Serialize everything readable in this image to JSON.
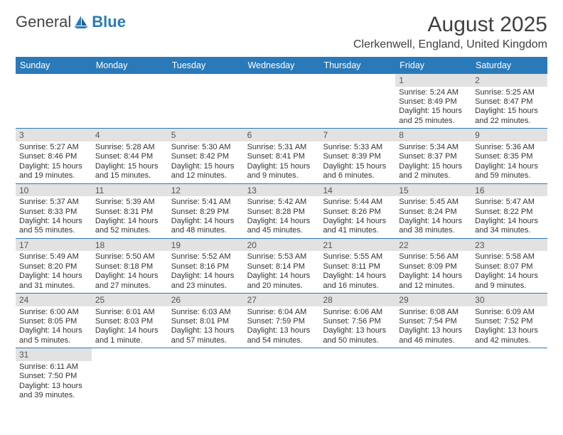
{
  "logo": {
    "part1": "General",
    "part2": "Blue"
  },
  "title": "August 2025",
  "location": "Clerkenwell, England, United Kingdom",
  "colors": {
    "header_bg": "#2a7ab9",
    "dnum_bg": "#e2e2e2",
    "text": "#333333"
  },
  "dow": [
    "Sunday",
    "Monday",
    "Tuesday",
    "Wednesday",
    "Thursday",
    "Friday",
    "Saturday"
  ],
  "weeks": [
    [
      {
        "n": "",
        "empty": true
      },
      {
        "n": "",
        "empty": true
      },
      {
        "n": "",
        "empty": true
      },
      {
        "n": "",
        "empty": true
      },
      {
        "n": "",
        "empty": true
      },
      {
        "n": "1",
        "sr": "Sunrise: 5:24 AM",
        "ss": "Sunset: 8:49 PM",
        "d1": "Daylight: 15 hours",
        "d2": "and 25 minutes."
      },
      {
        "n": "2",
        "sr": "Sunrise: 5:25 AM",
        "ss": "Sunset: 8:47 PM",
        "d1": "Daylight: 15 hours",
        "d2": "and 22 minutes."
      }
    ],
    [
      {
        "n": "3",
        "sr": "Sunrise: 5:27 AM",
        "ss": "Sunset: 8:46 PM",
        "d1": "Daylight: 15 hours",
        "d2": "and 19 minutes."
      },
      {
        "n": "4",
        "sr": "Sunrise: 5:28 AM",
        "ss": "Sunset: 8:44 PM",
        "d1": "Daylight: 15 hours",
        "d2": "and 15 minutes."
      },
      {
        "n": "5",
        "sr": "Sunrise: 5:30 AM",
        "ss": "Sunset: 8:42 PM",
        "d1": "Daylight: 15 hours",
        "d2": "and 12 minutes."
      },
      {
        "n": "6",
        "sr": "Sunrise: 5:31 AM",
        "ss": "Sunset: 8:41 PM",
        "d1": "Daylight: 15 hours",
        "d2": "and 9 minutes."
      },
      {
        "n": "7",
        "sr": "Sunrise: 5:33 AM",
        "ss": "Sunset: 8:39 PM",
        "d1": "Daylight: 15 hours",
        "d2": "and 6 minutes."
      },
      {
        "n": "8",
        "sr": "Sunrise: 5:34 AM",
        "ss": "Sunset: 8:37 PM",
        "d1": "Daylight: 15 hours",
        "d2": "and 2 minutes."
      },
      {
        "n": "9",
        "sr": "Sunrise: 5:36 AM",
        "ss": "Sunset: 8:35 PM",
        "d1": "Daylight: 14 hours",
        "d2": "and 59 minutes."
      }
    ],
    [
      {
        "n": "10",
        "sr": "Sunrise: 5:37 AM",
        "ss": "Sunset: 8:33 PM",
        "d1": "Daylight: 14 hours",
        "d2": "and 55 minutes."
      },
      {
        "n": "11",
        "sr": "Sunrise: 5:39 AM",
        "ss": "Sunset: 8:31 PM",
        "d1": "Daylight: 14 hours",
        "d2": "and 52 minutes."
      },
      {
        "n": "12",
        "sr": "Sunrise: 5:41 AM",
        "ss": "Sunset: 8:29 PM",
        "d1": "Daylight: 14 hours",
        "d2": "and 48 minutes."
      },
      {
        "n": "13",
        "sr": "Sunrise: 5:42 AM",
        "ss": "Sunset: 8:28 PM",
        "d1": "Daylight: 14 hours",
        "d2": "and 45 minutes."
      },
      {
        "n": "14",
        "sr": "Sunrise: 5:44 AM",
        "ss": "Sunset: 8:26 PM",
        "d1": "Daylight: 14 hours",
        "d2": "and 41 minutes."
      },
      {
        "n": "15",
        "sr": "Sunrise: 5:45 AM",
        "ss": "Sunset: 8:24 PM",
        "d1": "Daylight: 14 hours",
        "d2": "and 38 minutes."
      },
      {
        "n": "16",
        "sr": "Sunrise: 5:47 AM",
        "ss": "Sunset: 8:22 PM",
        "d1": "Daylight: 14 hours",
        "d2": "and 34 minutes."
      }
    ],
    [
      {
        "n": "17",
        "sr": "Sunrise: 5:49 AM",
        "ss": "Sunset: 8:20 PM",
        "d1": "Daylight: 14 hours",
        "d2": "and 31 minutes."
      },
      {
        "n": "18",
        "sr": "Sunrise: 5:50 AM",
        "ss": "Sunset: 8:18 PM",
        "d1": "Daylight: 14 hours",
        "d2": "and 27 minutes."
      },
      {
        "n": "19",
        "sr": "Sunrise: 5:52 AM",
        "ss": "Sunset: 8:16 PM",
        "d1": "Daylight: 14 hours",
        "d2": "and 23 minutes."
      },
      {
        "n": "20",
        "sr": "Sunrise: 5:53 AM",
        "ss": "Sunset: 8:14 PM",
        "d1": "Daylight: 14 hours",
        "d2": "and 20 minutes."
      },
      {
        "n": "21",
        "sr": "Sunrise: 5:55 AM",
        "ss": "Sunset: 8:11 PM",
        "d1": "Daylight: 14 hours",
        "d2": "and 16 minutes."
      },
      {
        "n": "22",
        "sr": "Sunrise: 5:56 AM",
        "ss": "Sunset: 8:09 PM",
        "d1": "Daylight: 14 hours",
        "d2": "and 12 minutes."
      },
      {
        "n": "23",
        "sr": "Sunrise: 5:58 AM",
        "ss": "Sunset: 8:07 PM",
        "d1": "Daylight: 14 hours",
        "d2": "and 9 minutes."
      }
    ],
    [
      {
        "n": "24",
        "sr": "Sunrise: 6:00 AM",
        "ss": "Sunset: 8:05 PM",
        "d1": "Daylight: 14 hours",
        "d2": "and 5 minutes."
      },
      {
        "n": "25",
        "sr": "Sunrise: 6:01 AM",
        "ss": "Sunset: 8:03 PM",
        "d1": "Daylight: 14 hours",
        "d2": "and 1 minute."
      },
      {
        "n": "26",
        "sr": "Sunrise: 6:03 AM",
        "ss": "Sunset: 8:01 PM",
        "d1": "Daylight: 13 hours",
        "d2": "and 57 minutes."
      },
      {
        "n": "27",
        "sr": "Sunrise: 6:04 AM",
        "ss": "Sunset: 7:59 PM",
        "d1": "Daylight: 13 hours",
        "d2": "and 54 minutes."
      },
      {
        "n": "28",
        "sr": "Sunrise: 6:06 AM",
        "ss": "Sunset: 7:56 PM",
        "d1": "Daylight: 13 hours",
        "d2": "and 50 minutes."
      },
      {
        "n": "29",
        "sr": "Sunrise: 6:08 AM",
        "ss": "Sunset: 7:54 PM",
        "d1": "Daylight: 13 hours",
        "d2": "and 46 minutes."
      },
      {
        "n": "30",
        "sr": "Sunrise: 6:09 AM",
        "ss": "Sunset: 7:52 PM",
        "d1": "Daylight: 13 hours",
        "d2": "and 42 minutes."
      }
    ],
    [
      {
        "n": "31",
        "sr": "Sunrise: 6:11 AM",
        "ss": "Sunset: 7:50 PM",
        "d1": "Daylight: 13 hours",
        "d2": "and 39 minutes."
      },
      {
        "n": "",
        "empty": true
      },
      {
        "n": "",
        "empty": true
      },
      {
        "n": "",
        "empty": true
      },
      {
        "n": "",
        "empty": true
      },
      {
        "n": "",
        "empty": true
      },
      {
        "n": "",
        "empty": true
      }
    ]
  ]
}
